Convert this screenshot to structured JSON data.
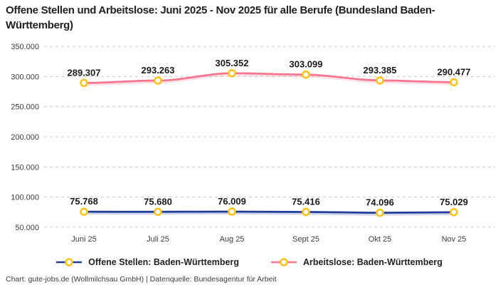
{
  "title": "Offene Stellen und Arbeitslose: Juni 2025 - Nov 2025 für alle Berufe (Bundesland Baden-Württemberg)",
  "footer": "Chart: gute-jobs.de (Wollmilchsau GmbH) | Datenquelle: Bundesagentur für Arbeit",
  "colors": {
    "title_text": "#212121",
    "axis_text": "#3d3d3d",
    "data_label_text": "#1a1a1a",
    "grid": "#cccccc",
    "marker_ring": "#fcc419",
    "marker_fill": "#ffffff",
    "series_blue": "#1f3d99",
    "series_pink": "#f8758f"
  },
  "chart_data": {
    "type": "line",
    "title": "Offene Stellen und Arbeitslose: Juni 2025 - Nov 2025 für alle Berufe (Bundesland Baden-Württemberg)",
    "categories": [
      "Juni 25",
      "Juli 25",
      "Aug 25",
      "Sept 25",
      "Okt 25",
      "Nov 25"
    ],
    "series": [
      {
        "name": "Offene Stellen: Baden-Württemberg",
        "color": "#1f3d99",
        "values": [
          75768,
          75680,
          76009,
          75416,
          74096,
          75029
        ],
        "labels": [
          "75.768",
          "75.680",
          "76.009",
          "75.416",
          "74.096",
          "75.029"
        ]
      },
      {
        "name": "Arbeitslose: Baden-Württemberg",
        "color": "#f8758f",
        "values": [
          289307,
          293263,
          305352,
          303099,
          293385,
          290477
        ],
        "labels": [
          "289.307",
          "293.263",
          "305.352",
          "303.099",
          "293.385",
          "290.477"
        ]
      }
    ],
    "ylim": [
      50000,
      350000
    ],
    "ytick_step": 50000,
    "ytick_labels": [
      "50.000",
      "100.000",
      "150.000",
      "200.000",
      "250.000",
      "300.000",
      "350.000"
    ],
    "xlabel": "",
    "ylabel": "",
    "grid": "horizontal-dashed",
    "legend_position": "bottom",
    "data_labels": true,
    "marker": "yellow-ring"
  }
}
